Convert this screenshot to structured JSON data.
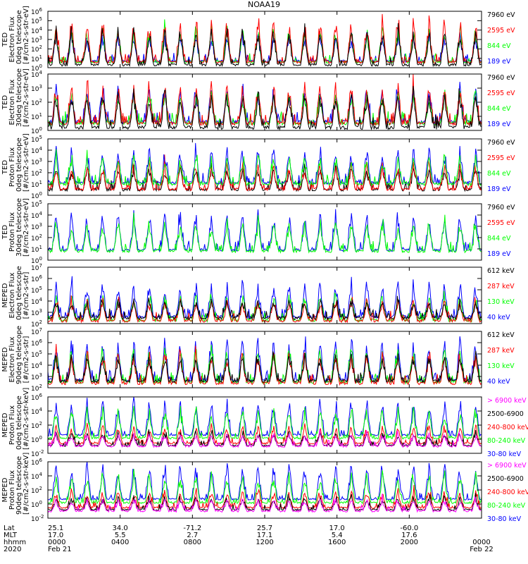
{
  "colors": {
    "black": "#000000",
    "red": "#ff0000",
    "green": "#00ff00",
    "blue": "#0000ff",
    "magenta": "#ff00ff"
  },
  "chart_data": {
    "type": "line",
    "title": "NOAA19",
    "time_axis": {
      "start": "2020-02-21T00:00",
      "end": "2020-02-22T00:00",
      "tick_hours": [
        0,
        4,
        8,
        12,
        16,
        20,
        24
      ],
      "row_labels": [
        "Lat",
        "MLT",
        "hhmm",
        "2020"
      ],
      "columns": [
        {
          "hour": 0,
          "values": [
            "25.1",
            "17.0",
            "0000",
            "Feb 21"
          ]
        },
        {
          "hour": 4,
          "values": [
            "34.0",
            "5.5",
            "0400",
            ""
          ]
        },
        {
          "hour": 8,
          "values": [
            "-71.2",
            "2.7",
            "0800",
            ""
          ]
        },
        {
          "hour": 12,
          "values": [
            "25.7",
            "17.1",
            "1200",
            ""
          ]
        },
        {
          "hour": 16,
          "values": [
            "17.0",
            "5.4",
            "1600",
            ""
          ]
        },
        {
          "hour": 20,
          "values": [
            "-60.0",
            "17.6",
            "2000",
            ""
          ]
        },
        {
          "hour": 24,
          "values": [
            "",
            "",
            "0000",
            "Feb 22"
          ]
        }
      ]
    },
    "panels": [
      {
        "id": "ted-e-0",
        "ylabel": [
          "TED",
          "Electron Flux",
          "0deg telescope",
          "[#/cm2-s-str-eV]"
        ],
        "yexp": [
          0,
          6
        ],
        "tick_exps": [
          0,
          1,
          2,
          3,
          4,
          5,
          6
        ],
        "legend": [
          {
            "label": "7960 eV",
            "color": "black"
          },
          {
            "label": "2595 eV",
            "color": "red"
          },
          {
            "label": "844 eV",
            "color": "green"
          },
          {
            "label": "189 eV",
            "color": "blue"
          }
        ],
        "series": [
          {
            "name": "189 eV",
            "color": "blue",
            "floor": 0.7,
            "amp": 0.55,
            "seed": 11
          },
          {
            "name": "844 eV",
            "color": "green",
            "floor": 0.6,
            "amp": 0.7,
            "seed": 12
          },
          {
            "name": "2595 eV",
            "color": "red",
            "floor": 0.6,
            "amp": 0.85,
            "seed": 13
          },
          {
            "name": "7960 eV",
            "color": "black",
            "floor": 0.3,
            "amp": 0.75,
            "seed": 14
          }
        ]
      },
      {
        "id": "ted-e-30",
        "ylabel": [
          "TED",
          "Electron Flux",
          "30deg telescope",
          "[#/cm2-s-str-eV]"
        ],
        "yexp": [
          0,
          4
        ],
        "tick_exps": [
          0,
          1,
          2,
          3,
          4
        ],
        "legend": [
          {
            "label": "7960 eV",
            "color": "black"
          },
          {
            "label": "2595 eV",
            "color": "red"
          },
          {
            "label": "844 eV",
            "color": "green"
          },
          {
            "label": "189 eV",
            "color": "blue"
          }
        ],
        "series": [
          {
            "name": "189 eV",
            "color": "blue",
            "floor": 0.6,
            "amp": 0.7,
            "seed": 21
          },
          {
            "name": "844 eV",
            "color": "green",
            "floor": 0.5,
            "amp": 0.65,
            "seed": 22
          },
          {
            "name": "2595 eV",
            "color": "red",
            "floor": 0.5,
            "amp": 0.8,
            "seed": 23
          },
          {
            "name": "7960 eV",
            "color": "black",
            "floor": 0.2,
            "amp": 0.7,
            "seed": 24
          }
        ]
      },
      {
        "id": "ted-p-0",
        "ylabel": [
          "TED",
          "Proton Flux",
          "0deg telescope",
          "[#/cm2-s-str-eV]"
        ],
        "yexp": [
          0,
          5
        ],
        "tick_exps": [
          0,
          1,
          2,
          3,
          4,
          5
        ],
        "legend": [
          {
            "label": "7960 eV",
            "color": "black"
          },
          {
            "label": "2595 eV",
            "color": "red"
          },
          {
            "label": "844 eV",
            "color": "green"
          },
          {
            "label": "189 eV",
            "color": "blue"
          }
        ],
        "series": [
          {
            "name": "7960 eV",
            "color": "black",
            "floor": 0.5,
            "amp": 0.45,
            "seed": 31
          },
          {
            "name": "2595 eV",
            "color": "red",
            "floor": 0.55,
            "amp": 0.5,
            "seed": 32
          },
          {
            "name": "189 eV",
            "color": "blue",
            "floor": 1.1,
            "amp": 0.7,
            "seed": 33
          },
          {
            "name": "844 eV",
            "color": "green",
            "floor": 1.0,
            "amp": 0.55,
            "seed": 34
          }
        ]
      },
      {
        "id": "ted-p-30",
        "ylabel": [
          "TED",
          "Proton Flux",
          "30deg telescope",
          "[#/cm2-s-str-eV]"
        ],
        "yexp": [
          0,
          5
        ],
        "tick_exps": [
          0,
          1,
          2,
          3,
          4,
          5
        ],
        "legend": [
          {
            "label": "7960 eV",
            "color": "black"
          },
          {
            "label": "2595 eV",
            "color": "red"
          },
          {
            "label": "844 eV",
            "color": "green"
          },
          {
            "label": "189 eV",
            "color": "blue"
          }
        ],
        "series": [
          {
            "name": "189 eV",
            "color": "blue",
            "floor": 0.9,
            "amp": 0.75,
            "seed": 41
          },
          {
            "name": "844 eV",
            "color": "green",
            "floor": 0.8,
            "amp": 0.6,
            "seed": 42
          }
        ]
      },
      {
        "id": "meped-e-0",
        "ylabel": [
          "MEPED",
          "Electron Flux",
          "0deg telescope",
          "[#/cm2-s-str]"
        ],
        "yexp": [
          2,
          7
        ],
        "tick_exps": [
          2,
          3,
          4,
          5,
          6,
          7
        ],
        "legend": [
          {
            "label": "612 keV",
            "color": "black"
          },
          {
            "label": "287 keV",
            "color": "red"
          },
          {
            "label": "130 keV",
            "color": "green"
          },
          {
            "label": "40 keV",
            "color": "blue"
          }
        ],
        "series": [
          {
            "name": "40 keV",
            "color": "blue",
            "floor": 2.6,
            "amp": 0.7,
            "seed": 51
          },
          {
            "name": "130 keV",
            "color": "green",
            "floor": 2.3,
            "amp": 0.5,
            "seed": 52
          },
          {
            "name": "287 keV",
            "color": "red",
            "floor": 2.25,
            "amp": 0.4,
            "seed": 53
          },
          {
            "name": "612 keV",
            "color": "black",
            "floor": 2.5,
            "amp": 0.35,
            "seed": 54
          }
        ]
      },
      {
        "id": "meped-e-90",
        "ylabel": [
          "MEPED",
          "Electron Flux",
          "90deg telescope",
          "[#/cm2-s-str]"
        ],
        "yexp": [
          2,
          7
        ],
        "tick_exps": [
          2,
          3,
          4,
          5,
          6,
          7
        ],
        "legend": [
          {
            "label": "612 keV",
            "color": "black"
          },
          {
            "label": "287 keV",
            "color": "red"
          },
          {
            "label": "130 keV",
            "color": "green"
          },
          {
            "label": "40 keV",
            "color": "blue"
          }
        ],
        "series": [
          {
            "name": "40 keV",
            "color": "blue",
            "floor": 2.7,
            "amp": 0.8,
            "seed": 61
          },
          {
            "name": "130 keV",
            "color": "green",
            "floor": 2.5,
            "amp": 0.7,
            "seed": 62
          },
          {
            "name": "287 keV",
            "color": "red",
            "floor": 2.4,
            "amp": 0.6,
            "seed": 63
          },
          {
            "name": "612 keV",
            "color": "black",
            "floor": 2.6,
            "amp": 0.55,
            "seed": 64
          }
        ]
      },
      {
        "id": "meped-p-0",
        "ylabel": [
          "MEPED",
          "Proton Flux",
          "0deg telescope",
          "[#/cm2-s-str-keV]"
        ],
        "yexp": [
          -2,
          6
        ],
        "tick_exps": [
          -2,
          0,
          2,
          4,
          6
        ],
        "legend": [
          {
            "label": "> 6900 keV",
            "color": "magenta"
          },
          {
            "label": "2500-6900",
            "color": "black"
          },
          {
            "label": "240-800 keV",
            "color": "red"
          },
          {
            "label": "80-240 keV",
            "color": "green"
          },
          {
            "label": "30-80 keV",
            "color": "blue"
          }
        ],
        "series": [
          {
            "name": "30-80 keV",
            "color": "blue",
            "floor": 0.6,
            "amp": 0.7,
            "seed": 71
          },
          {
            "name": "80-240 keV",
            "color": "green",
            "floor": 0.15,
            "amp": 0.6,
            "seed": 72
          },
          {
            "name": "240-800 keV",
            "color": "red",
            "floor": -0.6,
            "amp": 0.35,
            "seed": 73
          },
          {
            "name": "2500-6900",
            "color": "black",
            "floor": -0.9,
            "amp": 0.25,
            "seed": 74
          },
          {
            "name": "> 6900 keV",
            "color": "magenta",
            "floor": -1.0,
            "amp": 0.25,
            "seed": 75
          }
        ]
      },
      {
        "id": "meped-p-90",
        "ylabel": [
          "MEPED",
          "Proton Flux",
          "90deg telescope",
          "[#/cm2-s-str-keV]"
        ],
        "yexp": [
          -2,
          6
        ],
        "tick_exps": [
          -2,
          0,
          2,
          4,
          6
        ],
        "legend": [
          {
            "label": "> 6900 keV",
            "color": "magenta"
          },
          {
            "label": "2500-6900",
            "color": "black"
          },
          {
            "label": "240-800 keV",
            "color": "red"
          },
          {
            "label": "80-240 keV",
            "color": "green"
          },
          {
            "label": "30-80 keV",
            "color": "blue"
          }
        ],
        "series": [
          {
            "name": "30-80 keV",
            "color": "blue",
            "floor": 0.7,
            "amp": 0.7,
            "seed": 81
          },
          {
            "name": "80-240 keV",
            "color": "green",
            "floor": 0.2,
            "amp": 0.6,
            "seed": 82
          },
          {
            "name": "240-800 keV",
            "color": "red",
            "floor": -0.5,
            "amp": 0.35,
            "seed": 83
          },
          {
            "name": "2500-6900",
            "color": "black",
            "floor": -0.8,
            "amp": 0.25,
            "seed": 84
          },
          {
            "name": "> 6900 keV",
            "color": "magenta",
            "floor": -1.0,
            "amp": 0.25,
            "seed": 85
          }
        ]
      }
    ]
  }
}
